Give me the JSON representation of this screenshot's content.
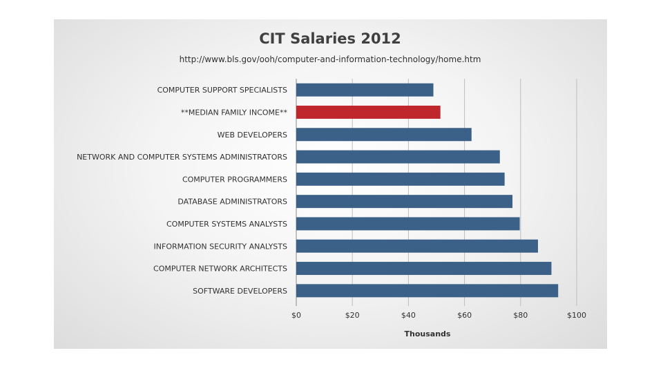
{
  "chart_data": {
    "type": "bar",
    "orientation": "horizontal",
    "title": "CIT Salaries 2012",
    "subtitle": "http://www.bls.gov/ooh/computer-and-information-technology/home.htm",
    "xlabel": "Thousands",
    "ylabel": "",
    "xlim": [
      0,
      100
    ],
    "ticks": [
      "$0",
      "$20",
      "$40",
      "$60",
      "$80",
      "$100"
    ],
    "tick_values": [
      0,
      20,
      40,
      60,
      80,
      100
    ],
    "grid": true,
    "legend": "none",
    "bar_color": "#3b6189",
    "highlight_color": "#c0272d",
    "categories": [
      "COMPUTER SUPPORT SPECIALISTS",
      "**MEDIAN FAMILY INCOME**",
      "WEB DEVELOPERS",
      "NETWORK AND COMPUTER SYSTEMS ADMINISTRATORS",
      "COMPUTER PROGRAMMERS",
      "DATABASE ADMINISTRATORS",
      "COMPUTER SYSTEMS ANALYSTS",
      "INFORMATION SECURITY ANALYSTS",
      "COMPUTER NETWORK ARCHITECTS",
      "SOFTWARE DEVELOPERS"
    ],
    "values": [
      48.9,
      51.4,
      62.5,
      72.6,
      74.3,
      77.1,
      79.7,
      86.2,
      91.0,
      93.4
    ],
    "highlighted": [
      "**MEDIAN FAMILY INCOME**"
    ]
  }
}
